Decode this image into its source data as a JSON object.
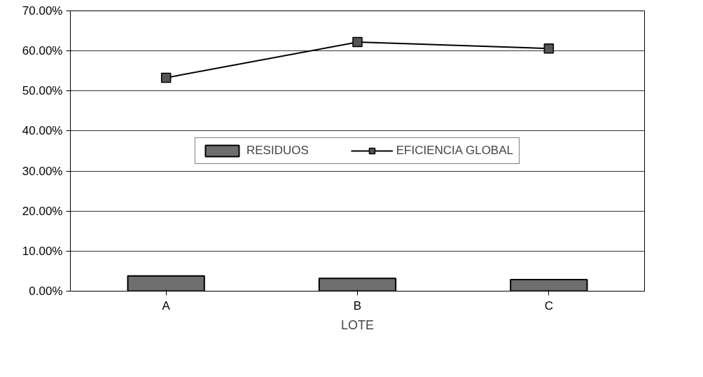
{
  "chart_data": {
    "type": "bar",
    "xlabel": "LOTE",
    "categories": [
      "A",
      "B",
      "C"
    ],
    "series": [
      {
        "name": "RESIDUOS",
        "color": "#6e6e6e",
        "values": [
          3.8,
          3.2,
          2.9
        ]
      },
      {
        "name": "EFICIENCIA GLOBAL",
        "type": "line",
        "color": "#000000",
        "values": [
          53.3,
          62.2,
          60.6
        ]
      }
    ],
    "ylim": [
      0,
      70
    ],
    "yticks": [
      {
        "value": 0,
        "label": "0.00%"
      },
      {
        "value": 10,
        "label": "10.00%"
      },
      {
        "value": 20,
        "label": "20.00%"
      },
      {
        "value": 30,
        "label": "30.00%"
      },
      {
        "value": 40,
        "label": "40.00%"
      },
      {
        "value": 50,
        "label": "50.00%"
      },
      {
        "value": 60,
        "label": "60.00%"
      },
      {
        "value": 70,
        "label": "70.00%"
      }
    ],
    "grid": "y",
    "legend": "center",
    "marker": "square",
    "line_style": "solid"
  }
}
